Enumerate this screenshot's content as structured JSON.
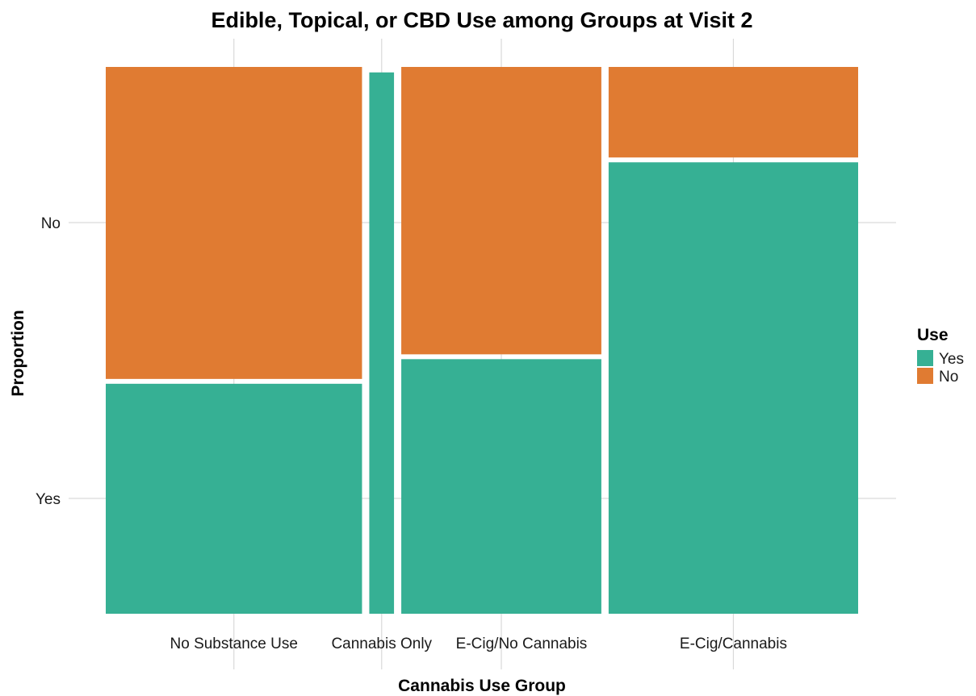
{
  "chart_data": {
    "type": "mosaic",
    "title": "Edible, Topical, or CBD Use among Groups at Visit 2",
    "xlabel": "Cannabis Use Group",
    "ylabel": "Proportion",
    "categories": [
      "No Substance Use",
      "Cannabis Only",
      "E-Cig/No Cannabis",
      "E-Cig/Cannabis"
    ],
    "category_widths": [
      0.342,
      0.033,
      0.267,
      0.333
    ],
    "y_ticks": [
      "Yes",
      "No"
    ],
    "series": [
      {
        "name": "Yes",
        "color": "#36b094",
        "values": [
          0.425,
          0.99,
          0.47,
          0.83
        ]
      },
      {
        "name": "No",
        "color": "#e07b32",
        "values": [
          0.575,
          0.01,
          0.53,
          0.17
        ]
      }
    ],
    "legend": {
      "title": "Use",
      "position": "right",
      "items": [
        "Yes",
        "No"
      ]
    },
    "grid": true
  }
}
